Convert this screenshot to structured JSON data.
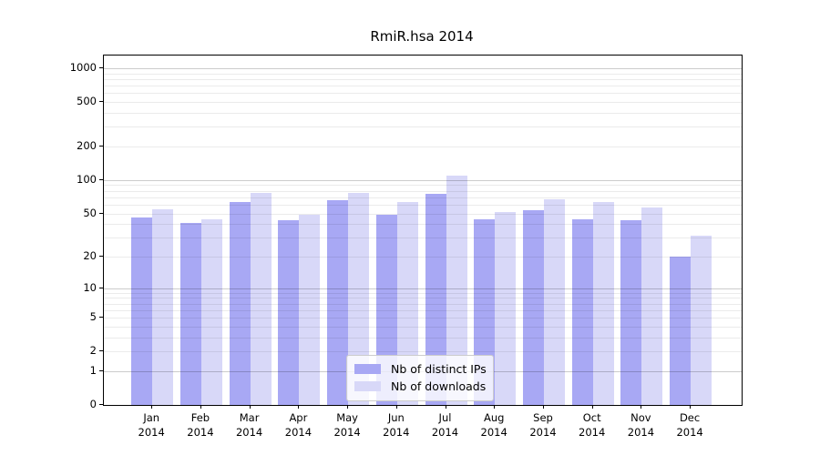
{
  "chart_data": {
    "type": "bar",
    "title": "RmiR.hsa 2014",
    "categories": [
      "Jan",
      "Feb",
      "Mar",
      "Apr",
      "May",
      "Jun",
      "Jul",
      "Aug",
      "Sep",
      "Oct",
      "Nov",
      "Dec"
    ],
    "category_year": "2014",
    "series": [
      {
        "name": "Nb of distinct IPs",
        "color": "#a8a8f4",
        "values": [
          46,
          41,
          64,
          43,
          66,
          49,
          75,
          44,
          53,
          44,
          43,
          20
        ]
      },
      {
        "name": "Nb of downloads",
        "color": "#d8d8f8",
        "values": [
          54,
          44,
          76,
          49,
          77,
          64,
          110,
          51,
          67,
          64,
          57,
          31
        ]
      }
    ],
    "yscale": "log1p",
    "yticks": [
      0,
      1,
      2,
      5,
      10,
      20,
      50,
      100,
      200,
      500,
      1000
    ],
    "ylim": [
      0,
      1300
    ],
    "grid": true,
    "legend_position": "inside-bottom-center",
    "xlabel": "",
    "ylabel": ""
  }
}
